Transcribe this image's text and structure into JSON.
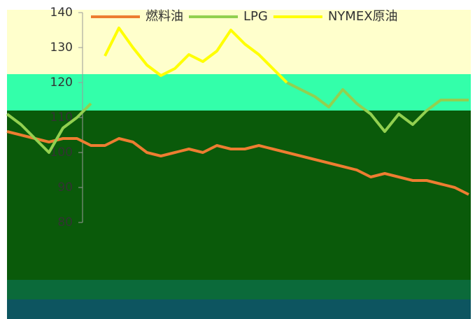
{
  "chart_data": {
    "type": "line",
    "categories": [
      null,
      null,
      null,
      null,
      null,
      null,
      null,
      null,
      null,
      null,
      null,
      null,
      null,
      null,
      null,
      null,
      null,
      null,
      null,
      null,
      null,
      null,
      null,
      null,
      null,
      null,
      null,
      null,
      null,
      null,
      null,
      null,
      null,
      null
    ],
    "series": [
      {
        "name": "燃料油",
        "color": "#ed7d31",
        "values": [
          106,
          105,
          104,
          103,
          104,
          104,
          102,
          102,
          104,
          103,
          100,
          99,
          100,
          101,
          100,
          102,
          101,
          101,
          102,
          101,
          100,
          99,
          98,
          97,
          96,
          95,
          93,
          94,
          93,
          92,
          92,
          91,
          90,
          88
        ]
      },
      {
        "name": "LPG",
        "color": "#92d050",
        "values": [
          111,
          108,
          104,
          100,
          107,
          110,
          114,
          null,
          null,
          null,
          null,
          null,
          null,
          null,
          null,
          null,
          null,
          null,
          null,
          null,
          120,
          118,
          116,
          113,
          118,
          114,
          111,
          106,
          111,
          108,
          112,
          115,
          115,
          115
        ]
      },
      {
        "name": "NYMEX原油",
        "color": "#ffff00",
        "values": [
          null,
          null,
          null,
          null,
          null,
          null,
          null,
          127.6,
          135.6,
          130,
          125,
          122,
          124,
          128,
          126,
          129,
          135,
          131,
          128,
          124,
          120,
          null,
          null,
          null,
          null,
          null,
          null,
          null,
          null,
          null,
          null,
          null,
          null,
          null
        ]
      }
    ],
    "ylim": [
      80,
      140
    ],
    "yticks": [
      140,
      130,
      120,
      110,
      100,
      90,
      80
    ]
  }
}
